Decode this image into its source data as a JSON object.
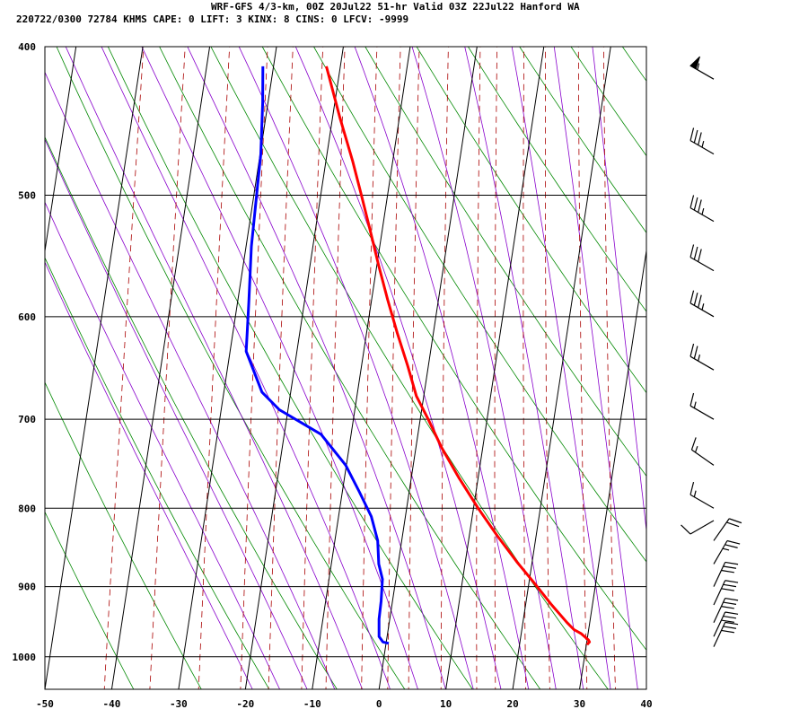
{
  "header": {
    "line1": "WRF-GFS 4/3-km, 00Z 20Jul22 51-hr Valid 03Z 22Jul22 Hanford WA",
    "line2": "220722/0300 72784  KHMS    CAPE:     0 LIFT:     3 KINX:     8 CINS:     0 LFCV: -9999"
  },
  "chart_data": {
    "type": "line",
    "subtype": "skew-T log-P sounding",
    "x_axis": {
      "unit": "°C",
      "ticks": [
        -50,
        -40,
        -30,
        -20,
        -10,
        0,
        10,
        20,
        30,
        40
      ],
      "range": [
        -50,
        40
      ]
    },
    "y_axis": {
      "unit": "hPa",
      "scale": "log",
      "ticks": [
        400,
        500,
        600,
        700,
        800,
        900,
        1000
      ],
      "range": [
        400,
        1050
      ]
    },
    "grid": true,
    "series": [
      {
        "color": "#ff0000",
        "points": [
          [
            -22.1,
            412
          ],
          [
            -18.9,
            445
          ],
          [
            -16,
            475
          ],
          [
            -13.9,
            500
          ],
          [
            -11.8,
            527
          ],
          [
            -9.7,
            556
          ],
          [
            -7.6,
            585
          ],
          [
            -5.4,
            615
          ],
          [
            -3.1,
            646
          ],
          [
            -1.1,
            676
          ],
          [
            1.2,
            700
          ],
          [
            3.9,
            731
          ],
          [
            7.2,
            765
          ],
          [
            10.7,
            800
          ],
          [
            14.2,
            834
          ],
          [
            17.7,
            867
          ],
          [
            20.9,
            896
          ],
          [
            23.9,
            925
          ],
          [
            26.6,
            950
          ],
          [
            27.8,
            960
          ],
          [
            29,
            966
          ],
          [
            30.2,
            975
          ],
          [
            30.4,
            978
          ],
          [
            30.1,
            982
          ]
        ]
      },
      {
        "color": "#0000ff",
        "points": [
          [
            -31.6,
            412
          ],
          [
            -30.8,
            435
          ],
          [
            -29.9,
            470
          ],
          [
            -29.6,
            500
          ],
          [
            -29.2,
            540
          ],
          [
            -28.3,
            588
          ],
          [
            -27.6,
            632
          ],
          [
            -24.3,
            672
          ],
          [
            -21.3,
            690
          ],
          [
            -14.5,
            716
          ],
          [
            -10.1,
            750
          ],
          [
            -7.5,
            780
          ],
          [
            -5.1,
            810
          ],
          [
            -3.6,
            840
          ],
          [
            -2.9,
            870
          ],
          [
            -2,
            890
          ],
          [
            -1.7,
            920
          ],
          [
            -1.6,
            945
          ],
          [
            -1.2,
            970
          ],
          [
            -0.5,
            978
          ],
          [
            0.4,
            980
          ]
        ]
      }
    ],
    "background_lines": {
      "isotherms": {
        "color": "#000000",
        "values": [
          -50,
          -40,
          -30,
          -20,
          -10,
          0,
          10,
          20,
          30,
          40
        ]
      },
      "dry_adiabats": {
        "color": "#008800"
      },
      "moist_adiabats": {
        "color": "#8800cc"
      },
      "mixing_ratio": {
        "color": "#aa0000",
        "style": "dashed"
      }
    },
    "wind_barbs": [
      {
        "pressure": 420,
        "dir_deg": 300,
        "speed_kt": 55
      },
      {
        "pressure": 470,
        "dir_deg": 300,
        "speed_kt": 35
      },
      {
        "pressure": 520,
        "dir_deg": 300,
        "speed_kt": 35
      },
      {
        "pressure": 560,
        "dir_deg": 300,
        "speed_kt": 30
      },
      {
        "pressure": 600,
        "dir_deg": 300,
        "speed_kt": 35
      },
      {
        "pressure": 650,
        "dir_deg": 300,
        "speed_kt": 25
      },
      {
        "pressure": 700,
        "dir_deg": 300,
        "speed_kt": 15
      },
      {
        "pressure": 750,
        "dir_deg": 305,
        "speed_kt": 15
      },
      {
        "pressure": 800,
        "dir_deg": 300,
        "speed_kt": 15
      },
      {
        "pressure": 815,
        "dir_deg": 240,
        "speed_kt": 10
      },
      {
        "pressure": 840,
        "dir_deg": 35,
        "speed_kt": 20
      },
      {
        "pressure": 870,
        "dir_deg": 30,
        "speed_kt": 25
      },
      {
        "pressure": 900,
        "dir_deg": 25,
        "speed_kt": 30
      },
      {
        "pressure": 925,
        "dir_deg": 25,
        "speed_kt": 30
      },
      {
        "pressure": 950,
        "dir_deg": 25,
        "speed_kt": 30
      },
      {
        "pressure": 970,
        "dir_deg": 25,
        "speed_kt": 30
      },
      {
        "pressure": 985,
        "dir_deg": 25,
        "speed_kt": 30
      }
    ]
  }
}
